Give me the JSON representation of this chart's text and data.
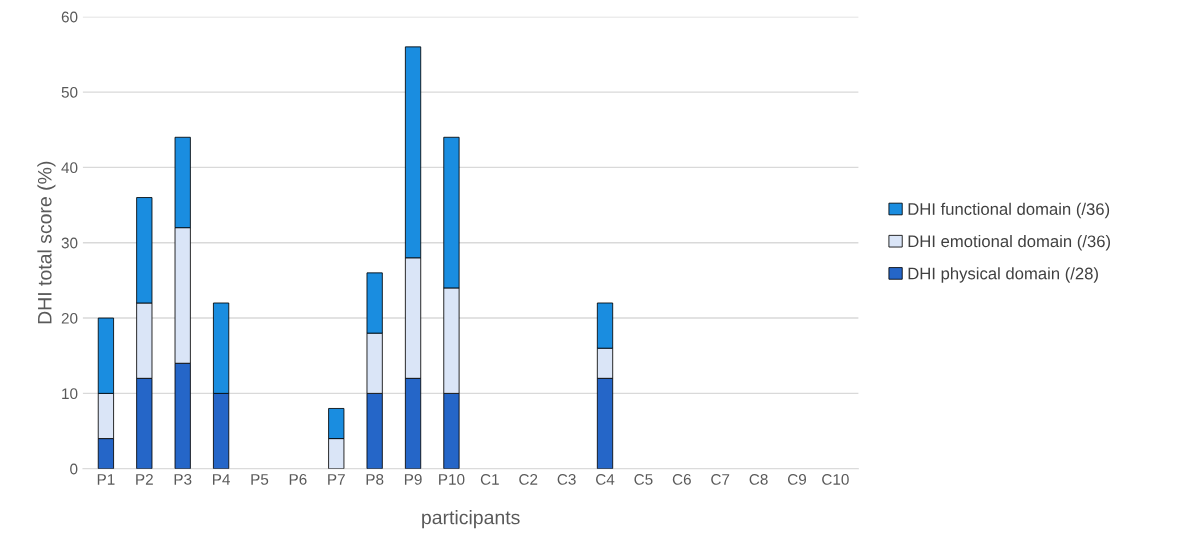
{
  "chart_data": {
    "type": "bar",
    "stacked": true,
    "xlabel": "participants",
    "ylabel": "DHI total score (%)",
    "categories": [
      "P1",
      "P2",
      "P3",
      "P4",
      "P5",
      "P6",
      "P7",
      "P8",
      "P9",
      "P10",
      "C1",
      "C2",
      "C3",
      "C4",
      "C5",
      "C6",
      "C7",
      "C8",
      "C9",
      "C10"
    ],
    "series": [
      {
        "name": "DHI physical domain (/28)",
        "color": "#2566c8",
        "values": [
          4,
          12,
          14,
          10,
          null,
          null,
          null,
          10,
          12,
          10,
          null,
          null,
          null,
          12,
          null,
          null,
          null,
          null,
          null,
          null
        ]
      },
      {
        "name": "DHI emotional domain (/36)",
        "color": "#dae5f7",
        "values": [
          6,
          10,
          18,
          null,
          null,
          null,
          4,
          8,
          16,
          14,
          null,
          null,
          null,
          4,
          null,
          null,
          null,
          null,
          null,
          null
        ]
      },
      {
        "name": "DHI functional domain (/36)",
        "color": "#1a8de0",
        "values": [
          10,
          14,
          12,
          12,
          null,
          null,
          4,
          8,
          28,
          20,
          null,
          null,
          null,
          6,
          null,
          null,
          null,
          null,
          null,
          null
        ]
      }
    ],
    "ylim": [
      0,
      60
    ],
    "yticks": [
      0,
      10,
      20,
      30,
      40,
      50,
      60
    ],
    "grid": "y",
    "legend": "right"
  }
}
